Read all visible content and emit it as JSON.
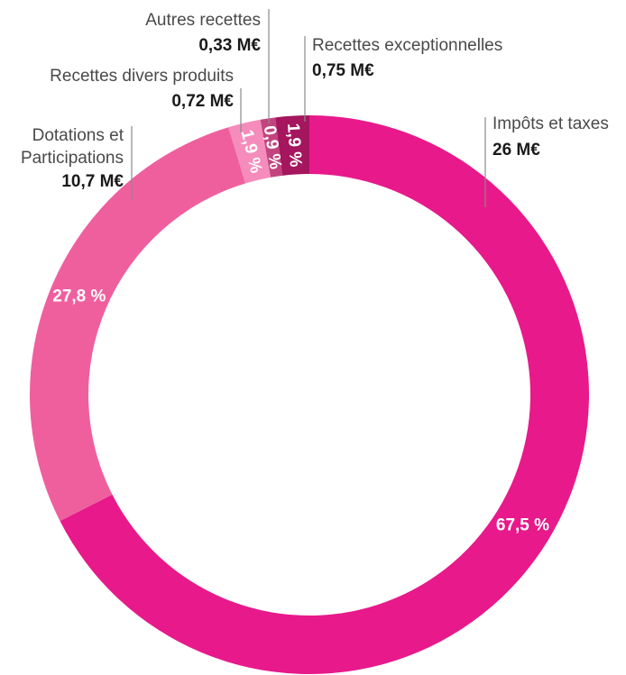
{
  "chart_data": {
    "type": "pie",
    "style": "donut",
    "unit": "M€",
    "slices": [
      {
        "name": "Impôts et taxes",
        "value_label": "26 M€",
        "value": 26,
        "percent": 67.5,
        "percent_label": "67,5 %",
        "color": "#e8198b"
      },
      {
        "name": "Dotations et Participations",
        "name_lines": [
          "Dotations et",
          "Participations"
        ],
        "value_label": "10,7 M€",
        "value": 10.7,
        "percent": 27.8,
        "percent_label": "27,8 %",
        "color": "#ef5f9e"
      },
      {
        "name": "Recettes divers produits",
        "value_label": "0,72 M€",
        "value": 0.72,
        "percent": 1.9,
        "percent_label": "1,9 %",
        "color": "#f58cbb"
      },
      {
        "name": "Autres recettes",
        "value_label": "0,33 M€",
        "value": 0.33,
        "percent": 0.9,
        "percent_label": "0,9 %",
        "color": "#c2447f"
      },
      {
        "name": "Recettes exceptionnelles",
        "value_label": "0,75 M€",
        "value": 0.75,
        "percent": 1.9,
        "percent_label": "1,9 %",
        "color": "#a5165e"
      }
    ]
  }
}
